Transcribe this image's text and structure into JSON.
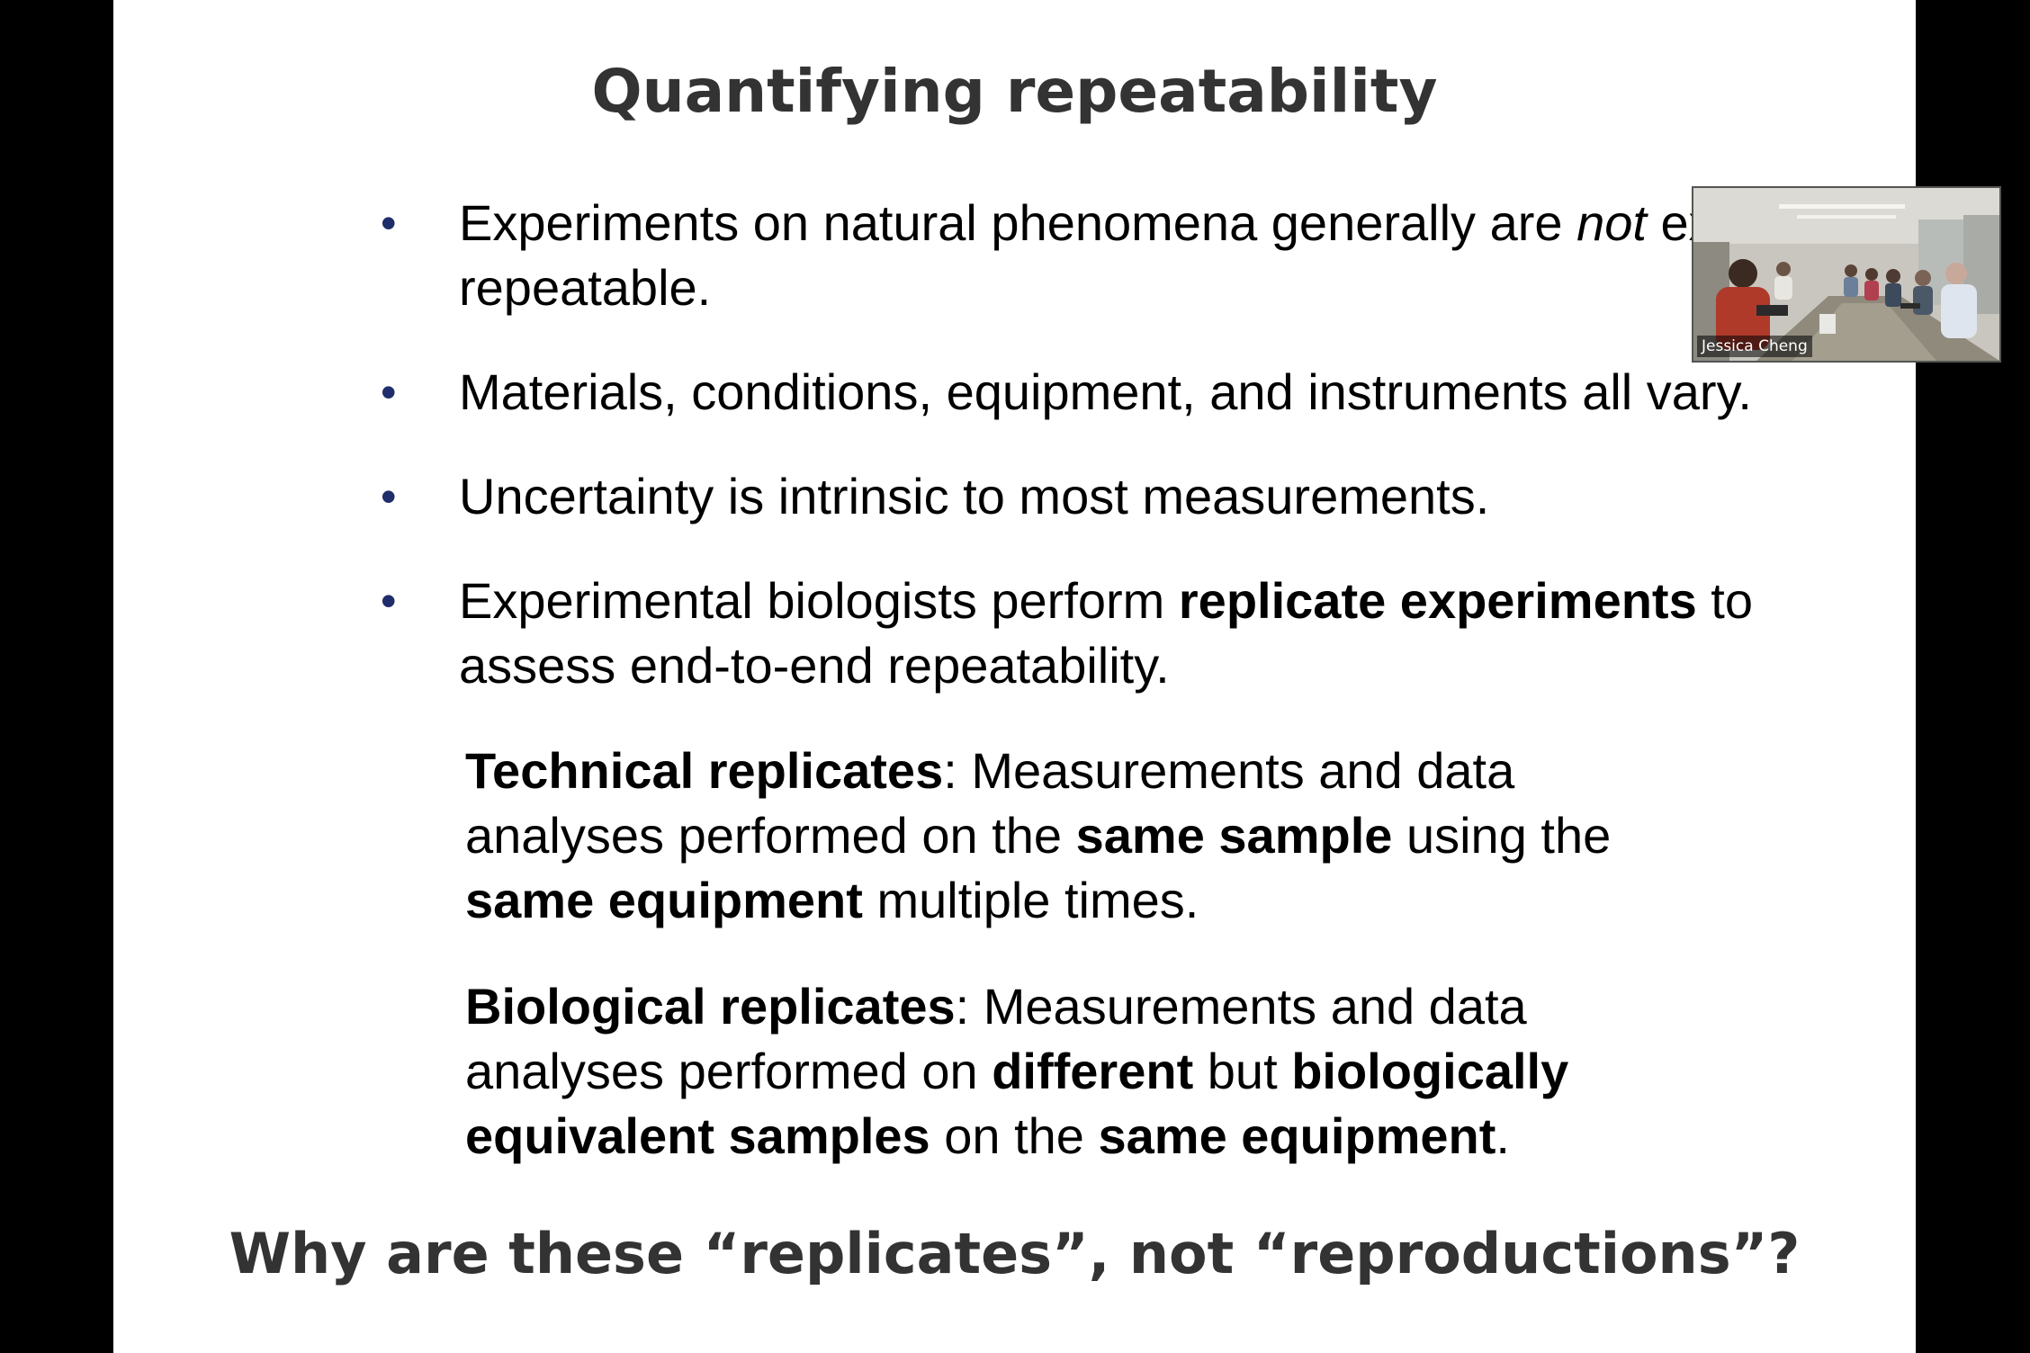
{
  "slide": {
    "title": "Quantifying repeatability",
    "bullets": [
      {
        "segments": [
          {
            "text": "Experiments on natural phenomena generally are ",
            "style": "normal"
          },
          {
            "text": "not",
            "style": "italic"
          },
          {
            "text": " exactly repeatable.",
            "style": "normal"
          }
        ]
      },
      {
        "segments": [
          {
            "text": "Materials, conditions, equipment, and instruments all vary.",
            "style": "normal"
          }
        ]
      },
      {
        "segments": [
          {
            "text": "Uncertainty is intrinsic to most measurements.",
            "style": "normal"
          }
        ]
      },
      {
        "segments": [
          {
            "text": "Experimental biologists perform ",
            "style": "normal"
          },
          {
            "text": "replicate experiments",
            "style": "bold"
          },
          {
            "text": " to assess end-to-end repeatability.",
            "style": "normal"
          }
        ]
      }
    ],
    "bullet_symbol": "•",
    "technical": {
      "segments": [
        {
          "text": "Technical replicates",
          "style": "bold"
        },
        {
          "text": ":  Measurements and data analyses performed on the ",
          "style": "normal"
        },
        {
          "text": "same sample",
          "style": "bold"
        },
        {
          "text": " using the ",
          "style": "normal"
        },
        {
          "text": "same equipment",
          "style": "bold"
        },
        {
          "text": " multiple times.",
          "style": "normal"
        }
      ]
    },
    "biological": {
      "segments": [
        {
          "text": "Biological replicates",
          "style": "bold"
        },
        {
          "text": ":  Measurements and data analyses performed on ",
          "style": "normal"
        },
        {
          "text": "different",
          "style": "bold"
        },
        {
          "text": " but ",
          "style": "normal"
        },
        {
          "text": "biologically equivalent samples",
          "style": "bold"
        },
        {
          "text": " on the ",
          "style": "normal"
        },
        {
          "text": "same equipment",
          "style": "bold"
        },
        {
          "text": ".",
          "style": "normal"
        }
      ]
    },
    "question": "Why are these “replicates”, not “reproductions”?"
  },
  "video": {
    "participant_name": "Jessica Cheng"
  },
  "colors": {
    "title": "#333333",
    "bullet_dot": "#1f2d6b",
    "slide_background": "#ffffff",
    "screen_background": "#000000"
  }
}
